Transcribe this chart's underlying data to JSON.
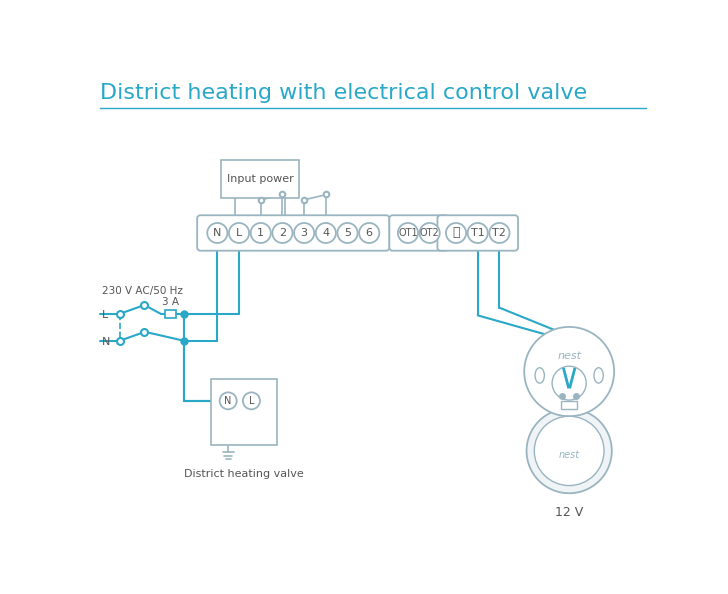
{
  "title": "District heating with electrical control valve",
  "title_color": "#29a8c8",
  "title_fontsize": 16,
  "bg_color": "#ffffff",
  "line_color": "#29a8c8",
  "component_color": "#9ab5c0",
  "text_color": "#555555",
  "labels_230v": "230 V AC/50 Hz",
  "label_L": "L",
  "label_N": "N",
  "label_3A": "3 A",
  "label_input_power": "Input power",
  "label_district": "District heating valve",
  "label_12v": "12 V",
  "label_nest": "nest"
}
